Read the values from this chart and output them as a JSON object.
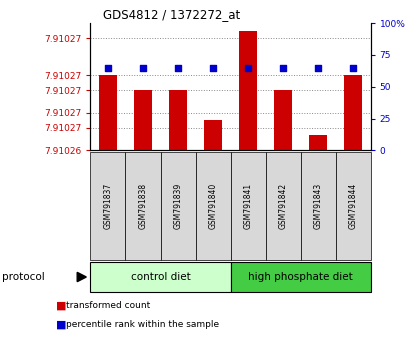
{
  "title": "GDS4812 / 1372272_at",
  "samples": [
    "GSM791837",
    "GSM791838",
    "GSM791839",
    "GSM791840",
    "GSM791841",
    "GSM791842",
    "GSM791843",
    "GSM791844"
  ],
  "bar_tops": [
    7.91027,
    7.910268,
    7.910268,
    7.910264,
    7.910276,
    7.910268,
    7.910262,
    7.91027
  ],
  "bar_bottom": 7.91026,
  "percentile_values": [
    65,
    65,
    65,
    65,
    65,
    65,
    65,
    65
  ],
  "bar_color": "#cc0000",
  "dot_color": "#0000cc",
  "ylim_left": [
    7.91026,
    7.910277
  ],
  "ylim_right": [
    0,
    100
  ],
  "left_ytick_vals": [
    7.91026,
    7.910263,
    7.910265,
    7.910268,
    7.91027,
    7.910275
  ],
  "left_ytick_labels": [
    "7.91026",
    "7.91027",
    "7.91027",
    "7.91027",
    "7.91027",
    "7.91027"
  ],
  "right_ytick_vals": [
    0,
    25,
    50,
    75,
    100
  ],
  "right_ytick_labels": [
    "0",
    "25",
    "50",
    "75",
    "100%"
  ],
  "groups": [
    {
      "label": "control diet",
      "start": 0,
      "end": 3,
      "color": "#ccffcc"
    },
    {
      "label": "high phosphate diet",
      "start": 4,
      "end": 7,
      "color": "#44cc44"
    }
  ],
  "protocol_label": "protocol",
  "legend_items": [
    {
      "label": "transformed count",
      "color": "#cc0000"
    },
    {
      "label": "percentile rank within the sample",
      "color": "#0000cc"
    }
  ],
  "sample_box_color": "#d8d8d8",
  "background_color": "#ffffff",
  "grid_color": "#888888",
  "left_tick_color": "#cc0000",
  "right_tick_color": "#0000cc",
  "title_color": "#000000"
}
